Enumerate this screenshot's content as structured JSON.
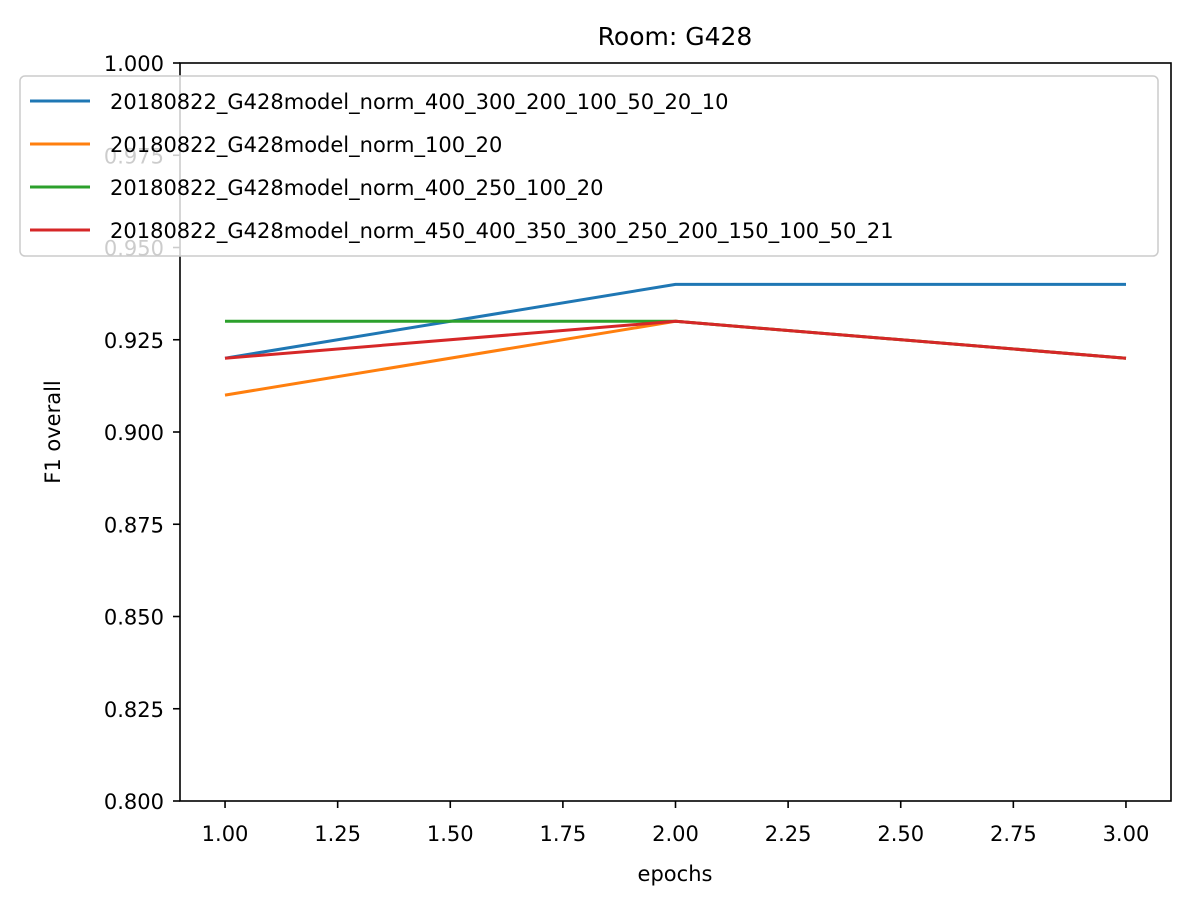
{
  "chart_data": {
    "type": "line",
    "title": "Room: G428",
    "xlabel": "epochs",
    "ylabel": "F1 overall",
    "x": [
      1.0,
      2.0,
      3.0
    ],
    "xlim": [
      0.9,
      3.1
    ],
    "ylim": [
      0.8,
      1.0
    ],
    "xticks": [
      1.0,
      1.25,
      1.5,
      1.75,
      2.0,
      2.25,
      2.5,
      2.75,
      3.0
    ],
    "xtick_labels": [
      "1.00",
      "1.25",
      "1.50",
      "1.75",
      "2.00",
      "2.25",
      "2.50",
      "2.75",
      "3.00"
    ],
    "yticks": [
      0.8,
      0.825,
      0.85,
      0.875,
      0.9,
      0.925,
      0.95,
      0.975,
      1.0
    ],
    "ytick_labels": [
      "0.800",
      "0.825",
      "0.850",
      "0.875",
      "0.900",
      "0.925",
      "0.950",
      "0.975",
      "1.000"
    ],
    "grid": false,
    "legend_position": "top",
    "series": [
      {
        "name": "20180822_G428model_norm_400_300_200_100_50_20_10",
        "color": "#1f77b4",
        "values": [
          0.92,
          0.94,
          0.94
        ]
      },
      {
        "name": "20180822_G428model_norm_100_20",
        "color": "#ff7f0e",
        "values": [
          0.91,
          0.93,
          0.92
        ]
      },
      {
        "name": "20180822_G428model_norm_400_250_100_20",
        "color": "#2ca02c",
        "values": [
          0.93,
          0.93,
          0.92
        ]
      },
      {
        "name": "20180822_G428model_norm_450_400_350_300_250_200_150_100_50_21",
        "color": "#d62728",
        "values": [
          0.92,
          0.93,
          0.92
        ]
      }
    ]
  }
}
